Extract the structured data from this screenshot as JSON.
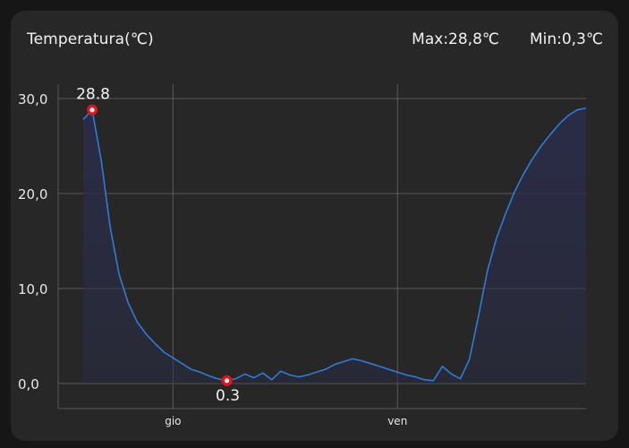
{
  "header": {
    "title": "Temperatura(℃)",
    "max_label": "Max:28,8℃",
    "min_label": "Min:0,3℃"
  },
  "chart_data": {
    "type": "area",
    "ylim": [
      0,
      30
    ],
    "yticks": [
      {
        "value": 0,
        "label": "0,0"
      },
      {
        "value": 10,
        "label": "10,0"
      },
      {
        "value": 20,
        "label": "20,0"
      },
      {
        "value": 30,
        "label": "30,0"
      }
    ],
    "xlim": [
      0,
      56
    ],
    "xticks": [
      {
        "value": 10,
        "label": "gio"
      },
      {
        "value": 35,
        "label": "ven"
      }
    ],
    "grid": true,
    "line_color": "#2f7bd6",
    "fill_color": "#2a2c48",
    "marker_color": "#e4141c",
    "x": [
      0,
      1,
      2,
      3,
      4,
      5,
      6,
      7,
      8,
      9,
      10,
      11,
      12,
      13,
      14,
      15,
      16,
      17,
      18,
      19,
      20,
      21,
      22,
      23,
      24,
      25,
      26,
      27,
      28,
      29,
      30,
      31,
      32,
      33,
      34,
      35,
      36,
      37,
      38,
      39,
      40,
      41,
      42,
      43,
      44,
      45,
      46,
      47,
      48,
      49,
      50,
      51,
      52,
      53,
      54,
      55,
      56
    ],
    "values": [
      27.8,
      28.8,
      23.5,
      16.5,
      11.5,
      8.5,
      6.5,
      5.2,
      4.2,
      3.3,
      2.7,
      2.1,
      1.5,
      1.2,
      0.8,
      0.5,
      0.3,
      0.5,
      1.0,
      0.6,
      1.1,
      0.4,
      1.3,
      0.9,
      0.7,
      0.9,
      1.2,
      1.5,
      2.0,
      2.3,
      2.6,
      2.4,
      2.1,
      1.8,
      1.5,
      1.2,
      0.9,
      0.7,
      0.4,
      0.3,
      1.8,
      1.0,
      0.5,
      2.5,
      7.0,
      11.8,
      15.2,
      17.8,
      20.1,
      22.0,
      23.6,
      25.0,
      26.2,
      27.3,
      28.2,
      28.8,
      29.0
    ],
    "annotations": [
      {
        "x": 1,
        "y": 28.8,
        "label": "28.8",
        "position": "above"
      },
      {
        "x": 16,
        "y": 0.3,
        "label": "0.3",
        "position": "below"
      }
    ]
  }
}
